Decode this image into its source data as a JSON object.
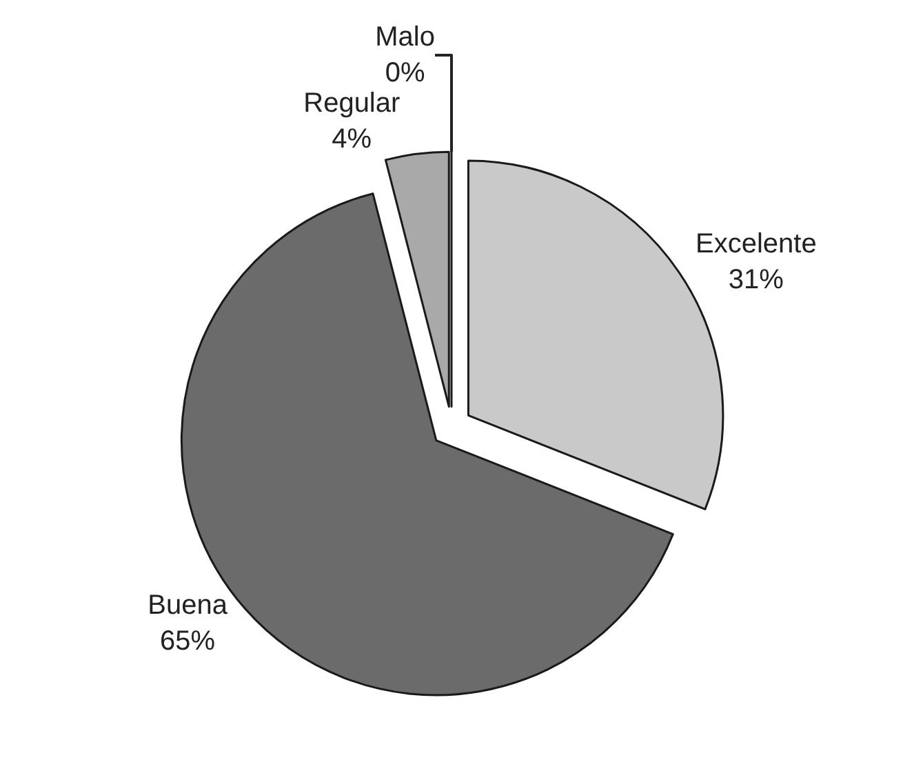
{
  "chart_data": {
    "type": "pie",
    "categories": [
      "Excelente",
      "Buena",
      "Regular",
      "Malo"
    ],
    "values": [
      31,
      65,
      4,
      0
    ],
    "value_labels": [
      "31%",
      "65%",
      "4%",
      "0%"
    ],
    "colors": [
      "#c9c9c9",
      "#6b6b6b",
      "#a9a9a9",
      "#d0d0d0"
    ],
    "legend": false
  }
}
